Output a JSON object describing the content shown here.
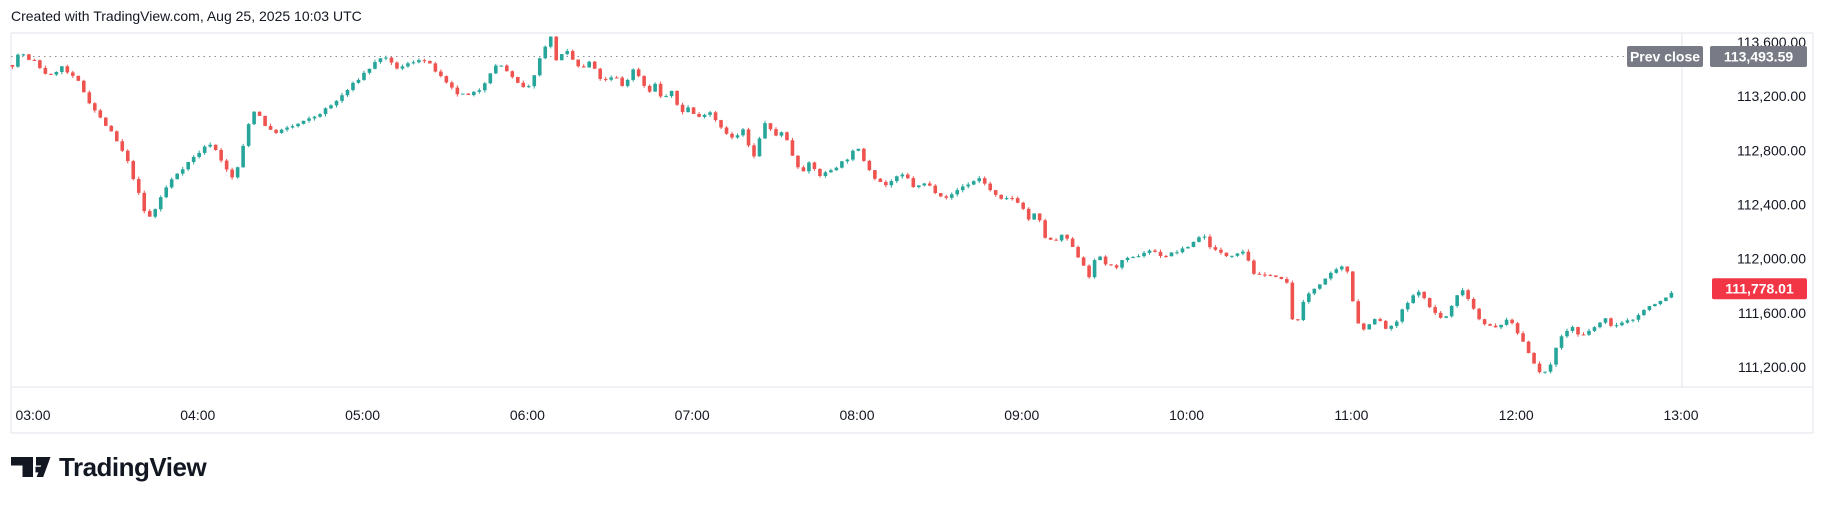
{
  "header": {
    "credit": "Created with TradingView.com, Aug 25, 2025 10:03 UTC"
  },
  "chart_data": {
    "type": "candlestick",
    "title": "",
    "legend_position": "none",
    "grid": "off",
    "x_axis": {
      "labels": [
        "03:00",
        "04:00",
        "05:00",
        "06:00",
        "07:00",
        "08:00",
        "09:00",
        "10:00",
        "11:00",
        "12:00",
        "13:00"
      ],
      "hours": [
        3,
        4,
        5,
        6,
        7,
        8,
        9,
        10,
        11,
        12,
        13
      ]
    },
    "y_axis": {
      "side": "right",
      "ticks": [
        {
          "label": "113,600.00",
          "value": 113600
        },
        {
          "label": "113,200.00",
          "value": 113200
        },
        {
          "label": "112,800.00",
          "value": 112800
        },
        {
          "label": "112,400.00",
          "value": 112400
        },
        {
          "label": "112,000.00",
          "value": 112000
        },
        {
          "label": "111,600.00",
          "value": 111600
        },
        {
          "label": "111,200.00",
          "value": 111200
        }
      ],
      "range": [
        111050,
        113670
      ]
    },
    "prev_close": {
      "label": "Prev close",
      "display": "113,493.59",
      "value": 113493.59
    },
    "last_price": {
      "display": "111,778.01",
      "value": 111778.01
    },
    "series": {
      "interval_minutes": 2,
      "start_hour": 2.875,
      "end_hour": 12.9667,
      "price_path": [
        [
          2.875,
          113430
        ],
        [
          2.9,
          113490
        ],
        [
          2.93,
          113530
        ],
        [
          2.97,
          113460
        ],
        [
          3.0,
          113470
        ],
        [
          3.05,
          113400
        ],
        [
          3.1,
          113340
        ],
        [
          3.17,
          113420
        ],
        [
          3.22,
          113360
        ],
        [
          3.28,
          113300
        ],
        [
          3.33,
          113180
        ],
        [
          3.4,
          113050
        ],
        [
          3.47,
          112940
        ],
        [
          3.53,
          112820
        ],
        [
          3.58,
          112700
        ],
        [
          3.63,
          112520
        ],
        [
          3.68,
          112330
        ],
        [
          3.72,
          112300
        ],
        [
          3.76,
          112420
        ],
        [
          3.82,
          112550
        ],
        [
          3.88,
          112640
        ],
        [
          3.95,
          112720
        ],
        [
          4.02,
          112800
        ],
        [
          4.08,
          112855
        ],
        [
          4.13,
          112760
        ],
        [
          4.18,
          112640
        ],
        [
          4.22,
          112580
        ],
        [
          4.27,
          112800
        ],
        [
          4.32,
          113050
        ],
        [
          4.35,
          113110
        ],
        [
          4.4,
          113000
        ],
        [
          4.45,
          112930
        ],
        [
          4.52,
          112950
        ],
        [
          4.6,
          112990
        ],
        [
          4.68,
          113030
        ],
        [
          4.75,
          113080
        ],
        [
          4.83,
          113150
        ],
        [
          4.92,
          113260
        ],
        [
          5.0,
          113360
        ],
        [
          5.07,
          113440
        ],
        [
          5.12,
          113500
        ],
        [
          5.17,
          113440
        ],
        [
          5.22,
          113400
        ],
        [
          5.28,
          113440
        ],
        [
          5.35,
          113480
        ],
        [
          5.42,
          113420
        ],
        [
          5.5,
          113300
        ],
        [
          5.57,
          113220
        ],
        [
          5.65,
          113200
        ],
        [
          5.72,
          113260
        ],
        [
          5.78,
          113390
        ],
        [
          5.83,
          113440
        ],
        [
          5.88,
          113380
        ],
        [
          5.93,
          113300
        ],
        [
          6.0,
          113240
        ],
        [
          6.05,
          113390
        ],
        [
          6.1,
          113560
        ],
        [
          6.14,
          113640
        ],
        [
          6.18,
          113450
        ],
        [
          6.23,
          113540
        ],
        [
          6.28,
          113460
        ],
        [
          6.33,
          113390
        ],
        [
          6.38,
          113460
        ],
        [
          6.43,
          113340
        ],
        [
          6.48,
          113310
        ],
        [
          6.53,
          113350
        ],
        [
          6.58,
          113270
        ],
        [
          6.65,
          113410
        ],
        [
          6.7,
          113300
        ],
        [
          6.73,
          113220
        ],
        [
          6.77,
          113300
        ],
        [
          6.82,
          113170
        ],
        [
          6.87,
          113240
        ],
        [
          6.93,
          113080
        ],
        [
          6.98,
          113120
        ],
        [
          7.03,
          113030
        ],
        [
          7.1,
          113100
        ],
        [
          7.17,
          112980
        ],
        [
          7.25,
          112880
        ],
        [
          7.31,
          112950
        ],
        [
          7.37,
          112730
        ],
        [
          7.44,
          113010
        ],
        [
          7.5,
          112900
        ],
        [
          7.55,
          112950
        ],
        [
          7.61,
          112760
        ],
        [
          7.66,
          112640
        ],
        [
          7.71,
          112700
        ],
        [
          7.78,
          112610
        ],
        [
          7.86,
          112670
        ],
        [
          7.94,
          112740
        ],
        [
          8.0,
          112820
        ],
        [
          8.06,
          112690
        ],
        [
          8.11,
          112600
        ],
        [
          8.17,
          112540
        ],
        [
          8.23,
          112590
        ],
        [
          8.29,
          112620
        ],
        [
          8.35,
          112520
        ],
        [
          8.42,
          112560
        ],
        [
          8.49,
          112480
        ],
        [
          8.56,
          112450
        ],
        [
          8.62,
          112520
        ],
        [
          8.69,
          112560
        ],
        [
          8.75,
          112600
        ],
        [
          8.81,
          112500
        ],
        [
          8.87,
          112430
        ],
        [
          8.94,
          112450
        ],
        [
          8.99,
          112410
        ],
        [
          9.04,
          112290
        ],
        [
          9.09,
          112340
        ],
        [
          9.14,
          112160
        ],
        [
          9.19,
          112120
        ],
        [
          9.26,
          112180
        ],
        [
          9.32,
          112050
        ],
        [
          9.36,
          111990
        ],
        [
          9.41,
          111870
        ],
        [
          9.46,
          112040
        ],
        [
          9.51,
          111960
        ],
        [
          9.56,
          111930
        ],
        [
          9.62,
          111990
        ],
        [
          9.67,
          112000
        ],
        [
          9.73,
          112040
        ],
        [
          9.78,
          112065
        ],
        [
          9.83,
          112030
        ],
        [
          9.88,
          112020
        ],
        [
          9.93,
          112050
        ],
        [
          9.98,
          112065
        ],
        [
          10.03,
          112110
        ],
        [
          10.07,
          112160
        ],
        [
          10.1,
          112175
        ],
        [
          10.15,
          112080
        ],
        [
          10.2,
          112040
        ],
        [
          10.25,
          112020
        ],
        [
          10.31,
          112050
        ],
        [
          10.35,
          112060
        ],
        [
          10.41,
          111890
        ],
        [
          10.46,
          111860
        ],
        [
          10.51,
          111890
        ],
        [
          10.56,
          111850
        ],
        [
          10.61,
          111820
        ],
        [
          10.65,
          111470
        ],
        [
          10.7,
          111650
        ],
        [
          10.74,
          111740
        ],
        [
          10.8,
          111810
        ],
        [
          10.86,
          111870
        ],
        [
          10.93,
          111930
        ],
        [
          10.97,
          111940
        ],
        [
          11.02,
          111620
        ],
        [
          11.06,
          111450
        ],
        [
          11.1,
          111520
        ],
        [
          11.16,
          111560
        ],
        [
          11.21,
          111480
        ],
        [
          11.26,
          111500
        ],
        [
          11.31,
          111620
        ],
        [
          11.36,
          111700
        ],
        [
          11.41,
          111770
        ],
        [
          11.46,
          111660
        ],
        [
          11.51,
          111600
        ],
        [
          11.56,
          111540
        ],
        [
          11.61,
          111650
        ],
        [
          11.67,
          111790
        ],
        [
          11.72,
          111680
        ],
        [
          11.78,
          111550
        ],
        [
          11.84,
          111500
        ],
        [
          11.89,
          111480
        ],
        [
          11.94,
          111560
        ],
        [
          11.99,
          111490
        ],
        [
          12.04,
          111390
        ],
        [
          12.09,
          111280
        ],
        [
          12.14,
          111160
        ],
        [
          12.19,
          111150
        ],
        [
          12.24,
          111350
        ],
        [
          12.29,
          111450
        ],
        [
          12.34,
          111500
        ],
        [
          12.39,
          111410
        ],
        [
          12.44,
          111460
        ],
        [
          12.49,
          111510
        ],
        [
          12.54,
          111550
        ],
        [
          12.59,
          111500
        ],
        [
          12.64,
          111520
        ],
        [
          12.69,
          111545
        ],
        [
          12.74,
          111580
        ],
        [
          12.79,
          111640
        ],
        [
          12.84,
          111660
        ],
        [
          12.88,
          111690
        ],
        [
          12.92,
          111720
        ],
        [
          12.97,
          111778
        ]
      ]
    },
    "colors": {
      "up": "#26a69a",
      "down": "#ef5350",
      "last_badge": "#f23645",
      "prev_badge": "#787b86",
      "axis_text": "#131722",
      "border": "#e0e3eb",
      "dotted_line": "#8b8e98"
    }
  },
  "footer": {
    "brand": "TradingView"
  }
}
